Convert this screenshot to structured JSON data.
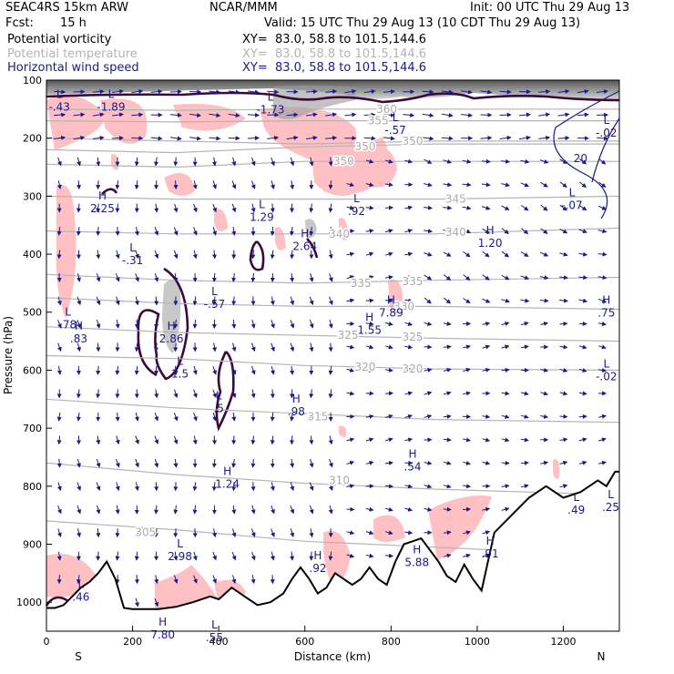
{
  "header": {
    "model": "SEAC4RS 15km ARW",
    "org": "NCAR/MMM",
    "init": "Init: 00 UTC Thu 29 Aug 13",
    "fcst_label": "Fcst:",
    "fcst_value": "15 h",
    "valid": "Valid: 15 UTC Thu 29 Aug 13 (10 CDT Thu 29 Aug 13)"
  },
  "fields": [
    {
      "name": "Potential vorticity",
      "xy": "XY=  83.0, 58.8 to 101.5,144.6",
      "color": "#000000"
    },
    {
      "name": "Potential temperature",
      "xy": "XY=  83.0, 58.8 to 101.5,144.6",
      "color": "#b4b4b4"
    },
    {
      "name": "Horizontal wind speed",
      "xy": "XY=  83.0, 58.8 to 101.5,144.6",
      "color": "#1a1a8a"
    }
  ],
  "chart_data": {
    "type": "cross-section",
    "xlabel": "Distance (km)",
    "ylabel": "Pressure (hPa)",
    "xlim": [
      0,
      1330
    ],
    "ylim": [
      1050,
      100
    ],
    "x_ticks": [
      0,
      200,
      400,
      600,
      800,
      1000,
      1200
    ],
    "y_ticks": [
      100,
      200,
      300,
      400,
      500,
      600,
      700,
      800,
      900,
      1000
    ],
    "left_end_label": "S",
    "right_end_label": "N",
    "terrain": {
      "x": [
        0,
        20,
        40,
        60,
        80,
        100,
        120,
        140,
        160,
        180,
        200,
        230,
        260,
        300,
        340,
        380,
        400,
        430,
        460,
        490,
        520,
        550,
        570,
        590,
        610,
        630,
        650,
        670,
        690,
        710,
        730,
        750,
        770,
        790,
        810,
        830,
        850,
        870,
        890,
        910,
        930,
        950,
        970,
        990,
        1010,
        1040,
        1080,
        1120,
        1160,
        1200,
        1240,
        1280,
        1300,
        1320,
        1330
      ],
      "p": [
        1010,
        1010,
        1005,
        990,
        975,
        965,
        950,
        930,
        960,
        1010,
        1012,
        1012,
        1012,
        1008,
        1000,
        990,
        995,
        975,
        990,
        1005,
        1000,
        985,
        960,
        940,
        960,
        985,
        975,
        950,
        960,
        970,
        960,
        940,
        960,
        970,
        930,
        900,
        895,
        890,
        910,
        930,
        955,
        965,
        935,
        960,
        980,
        880,
        850,
        820,
        800,
        820,
        810,
        790,
        800,
        775,
        775
      ]
    },
    "isentropes": [
      {
        "label": "305",
        "x": [
          0,
          300,
          600,
          900,
          1330
        ],
        "p": [
          860,
          875,
          895,
          905,
          920
        ],
        "label_x": 230,
        "label_p": 880
      },
      {
        "label": "310",
        "x": [
          0,
          300,
          600,
          900,
          1330
        ],
        "p": [
          760,
          780,
          795,
          805,
          815
        ],
        "label_x": 680,
        "label_p": 790
      },
      {
        "label": "315",
        "x": [
          0,
          300,
          600,
          900,
          1330
        ],
        "p": [
          650,
          665,
          675,
          685,
          690
        ],
        "label_x": 630,
        "label_p": 680
      },
      {
        "label": "320",
        "x": [
          0,
          300,
          600,
          900,
          1330
        ],
        "p": [
          575,
          580,
          592,
          598,
          600
        ],
        "label_x": 740,
        "label_p": 595
      },
      {
        "label": "320",
        "x": [
          0,
          300,
          600,
          900,
          1330
        ],
        "p": [
          575,
          580,
          592,
          598,
          600
        ],
        "label_x": 850,
        "label_p": 598
      },
      {
        "label": "325",
        "x": [
          0,
          300,
          600,
          900,
          1330
        ],
        "p": [
          525,
          535,
          540,
          545,
          550
        ],
        "label_x": 700,
        "label_p": 540
      },
      {
        "label": "325",
        "x": [
          0,
          300,
          600,
          900,
          1330
        ],
        "p": [
          525,
          535,
          540,
          545,
          550
        ],
        "label_x": 850,
        "label_p": 543
      },
      {
        "label": "330",
        "x": [
          0,
          300,
          600,
          900,
          1330
        ],
        "p": [
          475,
          485,
          490,
          490,
          495
        ],
        "label_x": 830,
        "label_p": 490
      },
      {
        "label": "335",
        "x": [
          0,
          300,
          600,
          900,
          1330
        ],
        "p": [
          435,
          445,
          450,
          445,
          440
        ],
        "label_x": 730,
        "label_p": 450
      },
      {
        "label": "335",
        "x": [
          0,
          300,
          600,
          900,
          1330
        ],
        "p": [
          435,
          445,
          450,
          445,
          440
        ],
        "label_x": 850,
        "label_p": 447
      },
      {
        "label": "340",
        "x": [
          0,
          300,
          600,
          900,
          1330
        ],
        "p": [
          360,
          365,
          365,
          365,
          355
        ],
        "label_x": 680,
        "label_p": 365
      },
      {
        "label": "340",
        "x": [
          0,
          300,
          600,
          900,
          1330
        ],
        "p": [
          360,
          365,
          365,
          365,
          355
        ],
        "label_x": 950,
        "label_p": 362
      },
      {
        "label": "345",
        "x": [
          0,
          300,
          600,
          900,
          1330
        ],
        "p": [
          300,
          305,
          305,
          305,
          300
        ],
        "label_x": 950,
        "label_p": 305
      },
      {
        "label": "350",
        "x": [
          0,
          300,
          600,
          900,
          1330
        ],
        "p": [
          245,
          250,
          240,
          240,
          240
        ],
        "label_x": 690,
        "label_p": 240
      },
      {
        "label": "350",
        "x": [
          0,
          300,
          600,
          900,
          1330
        ],
        "p": [
          220,
          225,
          215,
          210,
          210
        ],
        "label_x": 740,
        "label_p": 215
      },
      {
        "label": "350",
        "x": [
          0,
          300,
          600,
          900,
          1330
        ],
        "p": [
          200,
          205,
          210,
          205,
          205
        ],
        "label_x": 850,
        "label_p": 205
      },
      {
        "label": "355",
        "x": [
          0,
          300,
          600,
          900,
          1330
        ],
        "p": [
          170,
          172,
          170,
          170,
          170
        ],
        "label_x": 770,
        "label_p": 170
      },
      {
        "label": "360",
        "x": [
          0,
          300,
          600,
          900,
          1330
        ],
        "p": [
          150,
          152,
          150,
          150,
          150
        ],
        "label_x": 790,
        "label_p": 150
      }
    ],
    "extrema": [
      {
        "type": "L",
        "value": "-.43",
        "x": 30,
        "p": 140
      },
      {
        "type": "L",
        "value": "-1.89",
        "x": 150,
        "p": 140
      },
      {
        "type": "L",
        "value": "-1.73",
        "x": 520,
        "p": 145
      },
      {
        "type": "L",
        "value": "-.57",
        "x": 810,
        "p": 180
      },
      {
        "type": "L",
        "value": "-.02",
        "x": 1300,
        "p": 185
      },
      {
        "type": "H",
        "value": "2.25",
        "x": 130,
        "p": 315
      },
      {
        "type": "L",
        "value": "1.29",
        "x": 500,
        "p": 330
      },
      {
        "type": "L",
        "value": ".92",
        "x": 720,
        "p": 320
      },
      {
        "type": "L",
        "value": "-.07",
        "x": 1220,
        "p": 310
      },
      {
        "type": "L",
        "value": "-.31",
        "x": 200,
        "p": 405
      },
      {
        "type": "H",
        "value": "2.64",
        "x": 600,
        "p": 380
      },
      {
        "type": "H",
        "value": "1.20",
        "x": 1030,
        "p": 375
      },
      {
        "type": "L",
        "value": "-.57",
        "x": 390,
        "p": 480
      },
      {
        "type": "H",
        "value": "7.89",
        "x": 800,
        "p": 495
      },
      {
        "type": "L",
        "value": ".78",
        "x": 50,
        "p": 515
      },
      {
        "type": "H",
        "value": ".83",
        "x": 75,
        "p": 540
      },
      {
        "type": "H",
        "value": "1.55",
        "x": 750,
        "p": 525
      },
      {
        "type": "H",
        "value": "2.86",
        "x": 290,
        "p": 540
      },
      {
        "type": "H",
        "value": ".75",
        "x": 1300,
        "p": 495
      },
      {
        "type": "L",
        "value": "1.5",
        "x": 310,
        "p": 600
      },
      {
        "type": "L",
        "value": "-.02",
        "x": 1300,
        "p": 605
      },
      {
        "type": "L",
        "value": ".5",
        "x": 400,
        "p": 660
      },
      {
        "type": "H",
        "value": ".98",
        "x": 580,
        "p": 665
      },
      {
        "type": "H",
        "value": ".54",
        "x": 850,
        "p": 760
      },
      {
        "type": "H",
        "value": "1.24",
        "x": 420,
        "p": 790
      },
      {
        "type": "L",
        "value": ".49",
        "x": 1230,
        "p": 835
      },
      {
        "type": "L",
        "value": ".25",
        "x": 1310,
        "p": 830
      },
      {
        "type": "L",
        "value": "2.98",
        "x": 310,
        "p": 915
      },
      {
        "type": "H",
        "value": "5.88",
        "x": 860,
        "p": 925
      },
      {
        "type": "H",
        "value": ".92",
        "x": 630,
        "p": 935
      },
      {
        "type": "H",
        "value": ".91",
        "x": 1030,
        "p": 910
      },
      {
        "type": "L",
        "value": ".46",
        "x": 80,
        "p": 985
      },
      {
        "type": "H",
        "value": "7.80",
        "x": 270,
        "p": 1050
      },
      {
        "type": "L",
        "value": ".55",
        "x": 390,
        "p": 1055
      }
    ],
    "iso_wind_labels": [
      {
        "label": "20",
        "x": 1240,
        "p": 235
      }
    ]
  }
}
